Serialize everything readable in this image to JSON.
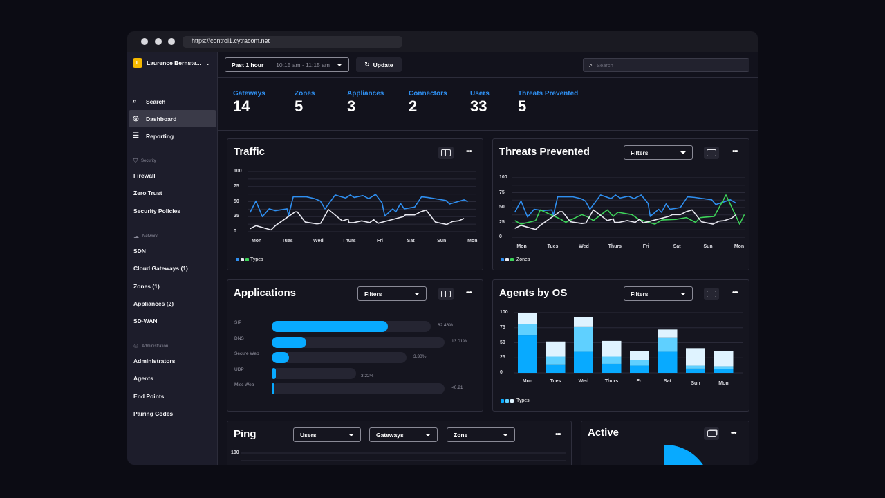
{
  "browser": {
    "url": "https://control1.cytracom.net"
  },
  "sidebar": {
    "user": "Laurence Bernste...",
    "avatar_letter": "L",
    "top": [
      {
        "label": "Search",
        "icon": "search-icon"
      },
      {
        "label": "Dashboard",
        "icon": "activity-icon"
      },
      {
        "label": "Reporting",
        "icon": "list-icon"
      }
    ],
    "sections": [
      {
        "title": "Security",
        "icon": "shield-icon",
        "items": [
          "Firewall",
          "Zero Trust",
          "Security Policies"
        ]
      },
      {
        "title": "Network",
        "icon": "cloud-icon",
        "items": [
          "SDN",
          "Cloud Gateways (1)",
          "Zones (1)",
          "Appliances (2)",
          "SD-WAN"
        ]
      },
      {
        "title": "Administration",
        "icon": "users-icon",
        "items": [
          "Administrators",
          "Agents",
          "End Points",
          "Pairing Codes"
        ]
      }
    ]
  },
  "toolbar": {
    "range": "Past 1 hour",
    "range_time": "10:15 am - 11:15 am",
    "update": "Update",
    "search_placeholder": "Search"
  },
  "stats": [
    {
      "label": "Gateways",
      "value": "14"
    },
    {
      "label": "Zones",
      "value": "5"
    },
    {
      "label": "Appliances",
      "value": "3"
    },
    {
      "label": "Connectors",
      "value": "2"
    },
    {
      "label": "Users",
      "value": "33"
    },
    {
      "label": "Threats Prevented",
      "value": "5"
    }
  ],
  "colors": {
    "accent": "#2f8ff0",
    "blue": "#2f8ff0",
    "white": "#e8e8f0",
    "green": "#3ed45a",
    "bar1": "#08aaff",
    "bar2": "#5fd0ff",
    "bar3": "#dff3ff"
  },
  "cards": {
    "traffic": {
      "title": "Traffic",
      "legend": "Types"
    },
    "threats": {
      "title": "Threats Prevented",
      "filter": "Filters",
      "legend": "Zones"
    },
    "applications": {
      "title": "Applications",
      "filter": "Filters"
    },
    "agents": {
      "title": "Agents by OS",
      "filter": "Filters",
      "legend": "Types"
    },
    "ping": {
      "title": "Ping",
      "filters": [
        "Users",
        "Gateways",
        "Zone"
      ],
      "ytick": "100"
    },
    "active": {
      "title": "Active"
    }
  },
  "chart_data": [
    {
      "id": "traffic",
      "type": "line",
      "title": "Traffic",
      "x_labels": [
        "Mon",
        "Tues",
        "Wed",
        "Thurs",
        "Fri",
        "Sat",
        "Sun",
        "Mon"
      ],
      "ylim": [
        0,
        100
      ],
      "yticks": [
        0,
        25,
        50,
        75,
        100
      ],
      "grid": true,
      "legend": "bottom-left",
      "series": [
        {
          "color": "#2f8ff0",
          "points": [
            [
              -0.19,
              32
            ],
            [
              0,
              51
            ],
            [
              0.21,
              25
            ],
            [
              0.43,
              38
            ],
            [
              0.63,
              35
            ],
            [
              1.01,
              38
            ],
            [
              1.06,
              27
            ],
            [
              1.21,
              58
            ],
            [
              1.64,
              58
            ],
            [
              1.9,
              55
            ],
            [
              2.09,
              51
            ],
            [
              2.24,
              38
            ],
            [
              2.57,
              61
            ],
            [
              2.91,
              56
            ],
            [
              3.06,
              61
            ],
            [
              3.19,
              57
            ],
            [
              3.47,
              60
            ],
            [
              3.66,
              55
            ],
            [
              3.88,
              62
            ],
            [
              4.09,
              48
            ],
            [
              4.18,
              26
            ],
            [
              4.44,
              38
            ],
            [
              4.54,
              33
            ],
            [
              4.69,
              47
            ],
            [
              4.81,
              38
            ],
            [
              5.15,
              41
            ],
            [
              5.37,
              58
            ],
            [
              5.56,
              57
            ],
            [
              6.16,
              52
            ],
            [
              6.28,
              46
            ],
            [
              6.75,
              53
            ],
            [
              6.87,
              50
            ]
          ]
        },
        {
          "color": "#e8e8f0",
          "points": [
            [
              -0.19,
              5
            ],
            [
              0,
              10
            ],
            [
              0.49,
              3
            ],
            [
              0.63,
              10
            ],
            [
              1.27,
              33
            ],
            [
              1.34,
              33
            ],
            [
              1.6,
              16
            ],
            [
              1.98,
              13
            ],
            [
              2.1,
              14
            ],
            [
              2.35,
              37
            ],
            [
              2.8,
              18
            ],
            [
              2.99,
              21
            ],
            [
              3.02,
              15
            ],
            [
              3.17,
              15
            ],
            [
              3.43,
              18
            ],
            [
              3.69,
              15
            ],
            [
              3.82,
              20
            ],
            [
              3.96,
              14
            ],
            [
              4.33,
              19
            ],
            [
              4.78,
              25
            ],
            [
              4.85,
              28
            ],
            [
              5.15,
              28
            ],
            [
              5.34,
              33
            ],
            [
              5.52,
              36
            ],
            [
              5.82,
              16
            ],
            [
              6.19,
              12
            ],
            [
              6.38,
              17
            ],
            [
              6.57,
              18
            ],
            [
              6.75,
              22
            ]
          ]
        }
      ]
    },
    {
      "id": "threats",
      "type": "line",
      "title": "Threats Prevented",
      "x_labels": [
        "Mon",
        "Tues",
        "Wed",
        "Thurs",
        "Fri",
        "Sat",
        "Sun",
        "Mon"
      ],
      "ylim": [
        0,
        100
      ],
      "yticks": [
        0,
        25,
        50,
        75,
        100
      ],
      "grid": true,
      "legend": "bottom-left",
      "series": [
        {
          "color": "#2f8ff0",
          "points": [
            [
              -0.2,
              42
            ],
            [
              0,
              61
            ],
            [
              0.21,
              34
            ],
            [
              0.42,
              47
            ],
            [
              0.69,
              45
            ],
            [
              0.99,
              46
            ],
            [
              1.04,
              37
            ],
            [
              1.18,
              68
            ],
            [
              1.66,
              68
            ],
            [
              1.93,
              65
            ],
            [
              2.07,
              61
            ],
            [
              2.22,
              47
            ],
            [
              2.56,
              71
            ],
            [
              2.9,
              65
            ],
            [
              3.04,
              71
            ],
            [
              3.19,
              66
            ],
            [
              3.46,
              69
            ],
            [
              3.64,
              65
            ],
            [
              3.87,
              71
            ],
            [
              4.09,
              57
            ],
            [
              4.16,
              35
            ],
            [
              4.43,
              47
            ],
            [
              4.52,
              42
            ],
            [
              4.67,
              56
            ],
            [
              4.8,
              47
            ],
            [
              5.13,
              50
            ],
            [
              5.36,
              68
            ],
            [
              5.58,
              67
            ],
            [
              6.14,
              63
            ],
            [
              6.27,
              55
            ],
            [
              6.74,
              63
            ],
            [
              6.93,
              57
            ]
          ]
        },
        {
          "color": "#3ed45a",
          "points": [
            [
              -0.2,
              28
            ],
            [
              0,
              22
            ],
            [
              0.47,
              28
            ],
            [
              0.62,
              46
            ],
            [
              1.29,
              30
            ],
            [
              1.44,
              25
            ],
            [
              1.96,
              38
            ],
            [
              2.15,
              34
            ],
            [
              2.33,
              28
            ],
            [
              2.78,
              46
            ],
            [
              2.97,
              35
            ],
            [
              3.12,
              42
            ],
            [
              3.57,
              38
            ],
            [
              3.79,
              30
            ],
            [
              3.98,
              27
            ],
            [
              4.31,
              22
            ],
            [
              4.54,
              29
            ],
            [
              4.99,
              30
            ],
            [
              5.32,
              33
            ],
            [
              5.62,
              25
            ],
            [
              5.77,
              33
            ],
            [
              6.22,
              35
            ],
            [
              6.6,
              71
            ],
            [
              7.04,
              22
            ],
            [
              7.19,
              38
            ]
          ]
        },
        {
          "color": "#e8e8f0",
          "points": [
            [
              -0.2,
              15
            ],
            [
              0,
              20
            ],
            [
              0.47,
              13
            ],
            [
              0.62,
              20
            ],
            [
              1.25,
              43
            ],
            [
              1.33,
              43
            ],
            [
              1.59,
              26
            ],
            [
              1.96,
              23
            ],
            [
              2.09,
              24
            ],
            [
              2.33,
              46
            ],
            [
              2.78,
              28
            ],
            [
              2.97,
              31
            ],
            [
              3.01,
              25
            ],
            [
              3.16,
              25
            ],
            [
              3.42,
              28
            ],
            [
              3.68,
              25
            ],
            [
              3.81,
              30
            ],
            [
              3.94,
              24
            ],
            [
              4.31,
              29
            ],
            [
              4.76,
              35
            ],
            [
              4.87,
              38
            ],
            [
              5.13,
              38
            ],
            [
              5.32,
              43
            ],
            [
              5.51,
              46
            ],
            [
              5.81,
              26
            ],
            [
              6.18,
              22
            ],
            [
              6.37,
              27
            ],
            [
              6.55,
              28
            ],
            [
              6.78,
              32
            ],
            [
              6.93,
              38
            ]
          ]
        }
      ]
    },
    {
      "id": "applications",
      "type": "bar",
      "orientation": "horizontal",
      "title": "Applications",
      "categories": [
        "SIP",
        "DNS",
        "Secure Web",
        "UDP",
        "Misc Web"
      ],
      "labels": [
        "82.46%",
        "13.01%",
        "3.30%",
        "3.22%",
        "<0.21"
      ],
      "fill": [
        0.73,
        0.2,
        0.13,
        0.05,
        0.01
      ]
    },
    {
      "id": "agents",
      "type": "bar",
      "stacked": true,
      "title": "Agents by OS",
      "categories": [
        "Mon",
        "Tues",
        "Wed",
        "Thurs",
        "Fri",
        "Sat",
        "Sun",
        "Mon"
      ],
      "ylim": [
        0,
        100
      ],
      "yticks": [
        0,
        25,
        50,
        75,
        100
      ],
      "grid": true,
      "legend": "bottom-left",
      "series": [
        {
          "color": "#08aaff",
          "values": [
            62,
            14,
            35,
            15,
            12,
            35,
            7,
            6
          ]
        },
        {
          "color": "#5fd0ff",
          "values": [
            19,
            13,
            41,
            12,
            9,
            24,
            5,
            5
          ]
        },
        {
          "color": "#dff3ff",
          "values": [
            19,
            25,
            16,
            26,
            15,
            13,
            29,
            25
          ]
        }
      ]
    }
  ]
}
